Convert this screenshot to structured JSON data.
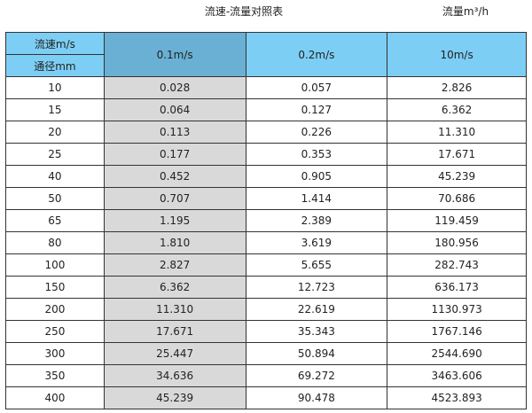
{
  "title": "流速-流量对照表",
  "unit": "流量m³/h",
  "header": {
    "velocity_label": "流速m/s",
    "diameter_label": "通径mm",
    "columns": [
      "0.1m/s",
      "0.2m/s",
      "10m/s"
    ]
  },
  "colors": {
    "header": "#7dcef4",
    "highlight_header": "#6ab0d4",
    "highlight_column": "#d9d9d9"
  },
  "rows": [
    [
      "10",
      "0.028",
      "0.057",
      "2.826"
    ],
    [
      "15",
      "0.064",
      "0.127",
      "6.362"
    ],
    [
      "20",
      "0.113",
      "0.226",
      "11.310"
    ],
    [
      "25",
      "0.177",
      "0.353",
      "17.671"
    ],
    [
      "40",
      "0.452",
      "0.905",
      "45.239"
    ],
    [
      "50",
      "0.707",
      "1.414",
      "70.686"
    ],
    [
      "65",
      "1.195",
      "2.389",
      "119.459"
    ],
    [
      "80",
      "1.810",
      "3.619",
      "180.956"
    ],
    [
      "100",
      "2.827",
      "5.655",
      "282.743"
    ],
    [
      "150",
      "6.362",
      "12.723",
      "636.173"
    ],
    [
      "200",
      "11.310",
      "22.619",
      "1130.973"
    ],
    [
      "250",
      "17.671",
      "35.343",
      "1767.146"
    ],
    [
      "300",
      "25.447",
      "50.894",
      "2544.690"
    ],
    [
      "350",
      "34.636",
      "69.272",
      "3463.606"
    ],
    [
      "400",
      "45.239",
      "90.478",
      "4523.893"
    ]
  ]
}
